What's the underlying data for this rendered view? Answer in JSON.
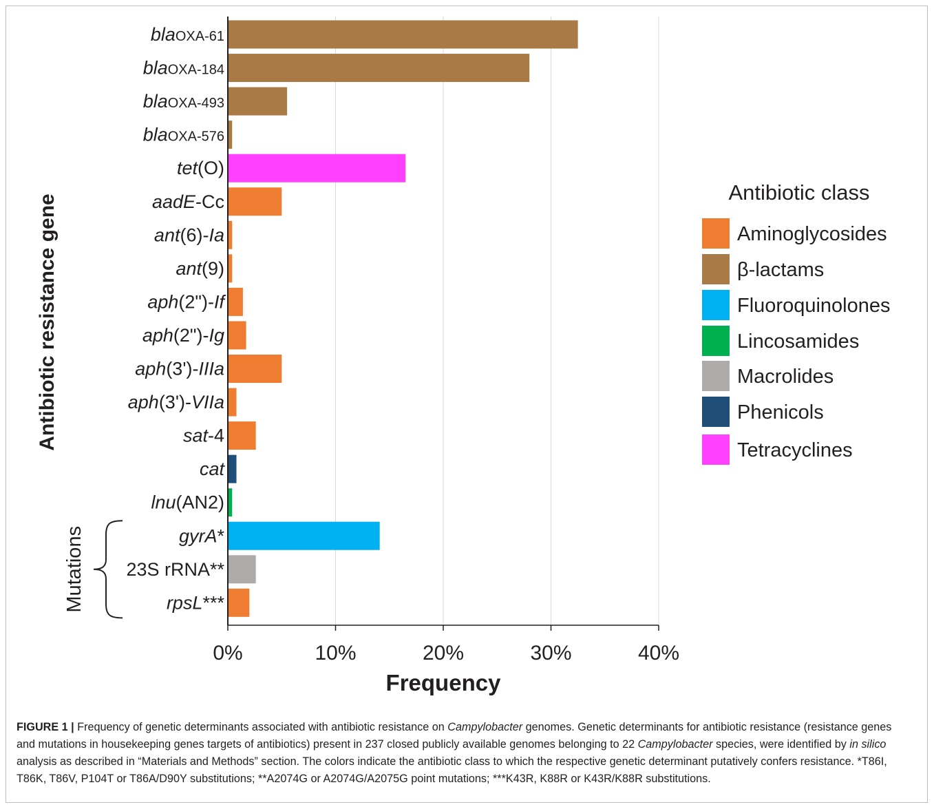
{
  "chart_data": {
    "type": "bar",
    "orientation": "horizontal",
    "xlabel": "Frequency",
    "ylabel": "Antibiotic resistance gene",
    "xlim": [
      0,
      40
    ],
    "x_ticks": [
      "0%",
      "10%",
      "20%",
      "30%",
      "40%"
    ],
    "x_tick_values": [
      0,
      10,
      20,
      30,
      40
    ],
    "grid": "vertical",
    "categories": [
      {
        "segments": [
          {
            "t": "bla",
            "i": true
          },
          {
            "t": "OXA-61",
            "sub": true
          }
        ],
        "value": 32.5,
        "class": "β-lactams"
      },
      {
        "segments": [
          {
            "t": "bla",
            "i": true
          },
          {
            "t": "OXA-184",
            "sub": true
          }
        ],
        "value": 28.0,
        "class": "β-lactams"
      },
      {
        "segments": [
          {
            "t": "bla",
            "i": true
          },
          {
            "t": "OXA-493",
            "sub": true
          }
        ],
        "value": 5.5,
        "class": "β-lactams"
      },
      {
        "segments": [
          {
            "t": "bla",
            "i": true
          },
          {
            "t": "OXA-576",
            "sub": true
          }
        ],
        "value": 0.4,
        "class": "β-lactams"
      },
      {
        "segments": [
          {
            "t": "tet",
            "i": true
          },
          {
            "t": "(O)"
          }
        ],
        "value": 16.5,
        "class": "Tetracyclines"
      },
      {
        "segments": [
          {
            "t": "aadE",
            "i": true
          },
          {
            "t": "-Cc"
          }
        ],
        "value": 5.0,
        "class": "Aminoglycosides"
      },
      {
        "segments": [
          {
            "t": "ant",
            "i": true
          },
          {
            "t": "(6)-"
          },
          {
            "t": "Ia",
            "i": true
          }
        ],
        "value": 0.4,
        "class": "Aminoglycosides"
      },
      {
        "segments": [
          {
            "t": "ant",
            "i": true
          },
          {
            "t": "(9)"
          }
        ],
        "value": 0.4,
        "class": "Aminoglycosides"
      },
      {
        "segments": [
          {
            "t": "aph",
            "i": true
          },
          {
            "t": "(2\")-"
          },
          {
            "t": "If",
            "i": true
          }
        ],
        "value": 1.4,
        "class": "Aminoglycosides"
      },
      {
        "segments": [
          {
            "t": "aph",
            "i": true
          },
          {
            "t": "(2\")-"
          },
          {
            "t": "Ig",
            "i": true
          }
        ],
        "value": 1.7,
        "class": "Aminoglycosides"
      },
      {
        "segments": [
          {
            "t": "aph",
            "i": true
          },
          {
            "t": "(3')-"
          },
          {
            "t": "IIIa",
            "i": true
          }
        ],
        "value": 5.0,
        "class": "Aminoglycosides"
      },
      {
        "segments": [
          {
            "t": "aph",
            "i": true
          },
          {
            "t": "(3')-"
          },
          {
            "t": "VIIa",
            "i": true
          }
        ],
        "value": 0.8,
        "class": "Aminoglycosides"
      },
      {
        "segments": [
          {
            "t": "sat",
            "i": true
          },
          {
            "t": "-4"
          }
        ],
        "value": 2.6,
        "class": "Aminoglycosides"
      },
      {
        "segments": [
          {
            "t": "cat",
            "i": true
          }
        ],
        "value": 0.8,
        "class": "Phenicols"
      },
      {
        "segments": [
          {
            "t": "lnu",
            "i": true
          },
          {
            "t": "(AN2)"
          }
        ],
        "value": 0.4,
        "class": "Lincosamides"
      },
      {
        "segments": [
          {
            "t": "gyrA",
            "i": true
          },
          {
            "t": "*"
          }
        ],
        "value": 14.1,
        "class": "Fluoroquinolones"
      },
      {
        "segments": [
          {
            "t": "23S rRNA**"
          }
        ],
        "value": 2.6,
        "class": "Macrolides"
      },
      {
        "segments": [
          {
            "t": "rpsL",
            "i": true
          },
          {
            "t": "***"
          }
        ],
        "value": 2.0,
        "class": "Aminoglycosides"
      }
    ],
    "bracket_label": "Mutations",
    "bracket_from_index": 15,
    "bracket_to_index": 17,
    "legend_title": "Antibiotic class",
    "legend_position": "right",
    "legend": [
      {
        "name": "Aminoglycosides",
        "color": "#ee7d31"
      },
      {
        "name": "β-lactams",
        "color": "#aa7a46"
      },
      {
        "name": "Fluoroquinolones",
        "color": "#00b0f0"
      },
      {
        "name": "Lincosamides",
        "color": "#00b050"
      },
      {
        "name": "Macrolides",
        "color": "#aeaaaa"
      },
      {
        "name": "Phenicols",
        "color": "#1f4e79"
      },
      {
        "name": "Tetracyclines",
        "color": "#ff40ff"
      }
    ]
  },
  "caption": [
    {
      "t": "FIGURE 1 | ",
      "b": true
    },
    {
      "t": "Frequency of genetic determinants associated with antibiotic resistance on "
    },
    {
      "t": "Campylobacter",
      "i": true
    },
    {
      "t": " genomes. Genetic determinants for antibiotic resistance (resistance genes and mutations in housekeeping genes targets of antibiotics) present in 237 closed publicly available genomes belonging to 22 "
    },
    {
      "t": "Campylobacter",
      "i": true
    },
    {
      "t": " species, were identified by "
    },
    {
      "t": "in silico",
      "i": true
    },
    {
      "t": " analysis as described in “Materials and Methods” section. The colors indicate the antibiotic class to which the respective genetic determinant putatively confers resistance. *T86I, T86K, T86V, P104T or T86A/D90Y substitutions; **A2074G or A2074G/A2075G point mutations; ***K43R, K88R or K43R/K88R substitutions."
    }
  ]
}
